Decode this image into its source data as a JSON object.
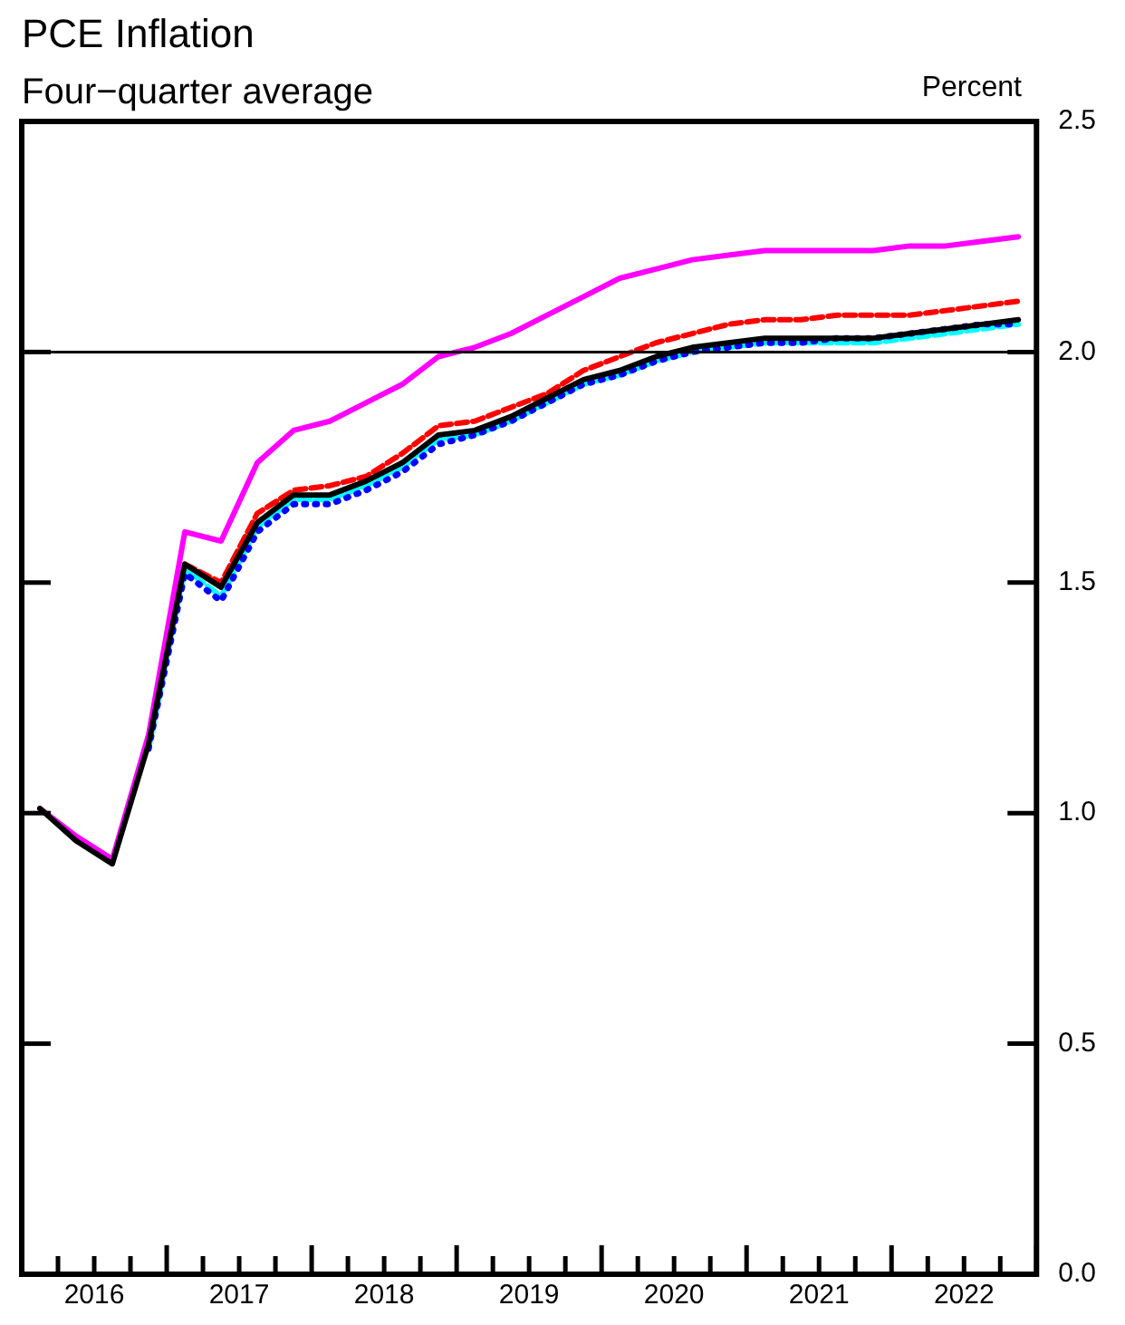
{
  "chart_data": {
    "type": "line",
    "title": "PCE Inflation",
    "subtitle": "Four−quarter average",
    "ylabel": "Percent",
    "x": [
      2016.125,
      2016.375,
      2016.625,
      2016.875,
      2017.125,
      2017.375,
      2017.625,
      2017.875,
      2018.125,
      2018.375,
      2018.625,
      2018.875,
      2019.125,
      2019.375,
      2019.625,
      2019.875,
      2020.125,
      2020.375,
      2020.625,
      2020.875,
      2021.125,
      2021.375,
      2021.625,
      2021.875,
      2022.125,
      2022.375,
      2022.625,
      2022.875
    ],
    "series": [
      {
        "color": "#ff00ff",
        "line_style": "solid",
        "values": [
          1.01,
          0.95,
          0.9,
          1.17,
          1.61,
          1.59,
          1.76,
          1.83,
          1.85,
          1.89,
          1.93,
          1.99,
          2.01,
          2.04,
          2.08,
          2.12,
          2.16,
          2.18,
          2.2,
          2.21,
          2.22,
          2.22,
          2.22,
          2.22,
          2.23,
          2.23,
          2.24,
          2.25
        ]
      },
      {
        "color": "#ff0000",
        "line_style": "dashed",
        "values": [
          null,
          null,
          null,
          null,
          1.54,
          1.5,
          1.65,
          1.7,
          1.71,
          1.73,
          1.78,
          1.84,
          1.85,
          1.88,
          1.91,
          1.96,
          1.99,
          2.02,
          2.04,
          2.06,
          2.07,
          2.07,
          2.08,
          2.08,
          2.08,
          2.09,
          2.1,
          2.11
        ]
      },
      {
        "color": "#00ffff",
        "line_style": "dashed",
        "values": [
          null,
          null,
          null,
          1.14,
          1.53,
          1.47,
          1.62,
          1.68,
          1.68,
          1.71,
          1.75,
          1.81,
          1.82,
          1.85,
          1.89,
          1.93,
          1.95,
          1.98,
          2.0,
          2.01,
          2.02,
          2.02,
          2.02,
          2.02,
          2.03,
          2.04,
          2.05,
          2.06
        ]
      },
      {
        "color": "#0000ff",
        "line_style": "dotted",
        "values": [
          null,
          null,
          null,
          1.14,
          1.52,
          1.46,
          1.61,
          1.67,
          1.67,
          1.7,
          1.74,
          1.8,
          1.82,
          1.85,
          1.89,
          1.93,
          1.95,
          1.98,
          2.0,
          2.01,
          2.02,
          2.02,
          2.03,
          2.03,
          2.04,
          2.05,
          2.06,
          2.06
        ]
      },
      {
        "color": "#000000",
        "line_style": "solid",
        "values": [
          1.01,
          0.94,
          0.89,
          1.15,
          1.54,
          1.49,
          1.63,
          1.69,
          1.69,
          1.72,
          1.76,
          1.82,
          1.83,
          1.86,
          1.9,
          1.94,
          1.96,
          1.99,
          2.01,
          2.02,
          2.03,
          2.03,
          2.03,
          2.03,
          2.04,
          2.05,
          2.06,
          2.07
        ]
      }
    ],
    "xlim": [
      2016,
      2023
    ],
    "xticks": [
      {
        "value": 2016,
        "label": null
      },
      {
        "value": 2016.25,
        "label": null
      },
      {
        "value": 2016.5,
        "label": "2016"
      },
      {
        "value": 2016.75,
        "label": null
      },
      {
        "value": 2017,
        "label": null
      },
      {
        "value": 2017.25,
        "label": null
      },
      {
        "value": 2017.5,
        "label": "2017"
      },
      {
        "value": 2017.75,
        "label": null
      },
      {
        "value": 2018,
        "label": null
      },
      {
        "value": 2018.25,
        "label": null
      },
      {
        "value": 2018.5,
        "label": "2018"
      },
      {
        "value": 2018.75,
        "label": null
      },
      {
        "value": 2019,
        "label": null
      },
      {
        "value": 2019.25,
        "label": null
      },
      {
        "value": 2019.5,
        "label": "2019"
      },
      {
        "value": 2019.75,
        "label": null
      },
      {
        "value": 2020,
        "label": null
      },
      {
        "value": 2020.25,
        "label": null
      },
      {
        "value": 2020.5,
        "label": "2020"
      },
      {
        "value": 2020.75,
        "label": null
      },
      {
        "value": 2021,
        "label": null
      },
      {
        "value": 2021.25,
        "label": null
      },
      {
        "value": 2021.5,
        "label": "2021"
      },
      {
        "value": 2021.75,
        "label": null
      },
      {
        "value": 2022,
        "label": null
      },
      {
        "value": 2022.25,
        "label": null
      },
      {
        "value": 2022.5,
        "label": "2022"
      },
      {
        "value": 2022.75,
        "label": null
      },
      {
        "value": 2023,
        "label": null
      }
    ],
    "ylim": [
      0,
      2.5
    ],
    "yticks": [
      {
        "value": 0,
        "label": "0.0"
      },
      {
        "value": 0.5,
        "label": "0.5"
      },
      {
        "value": 1,
        "label": "1.0"
      },
      {
        "value": 1.5,
        "label": "1.5"
      },
      {
        "value": 2,
        "label": "2.0"
      },
      {
        "value": 2.5,
        "label": "2.5"
      }
    ],
    "ref_lines": [
      {
        "axis": "y",
        "value": 2,
        "color": "#000000"
      }
    ],
    "grid": false,
    "legend": false,
    "marker": "none"
  }
}
